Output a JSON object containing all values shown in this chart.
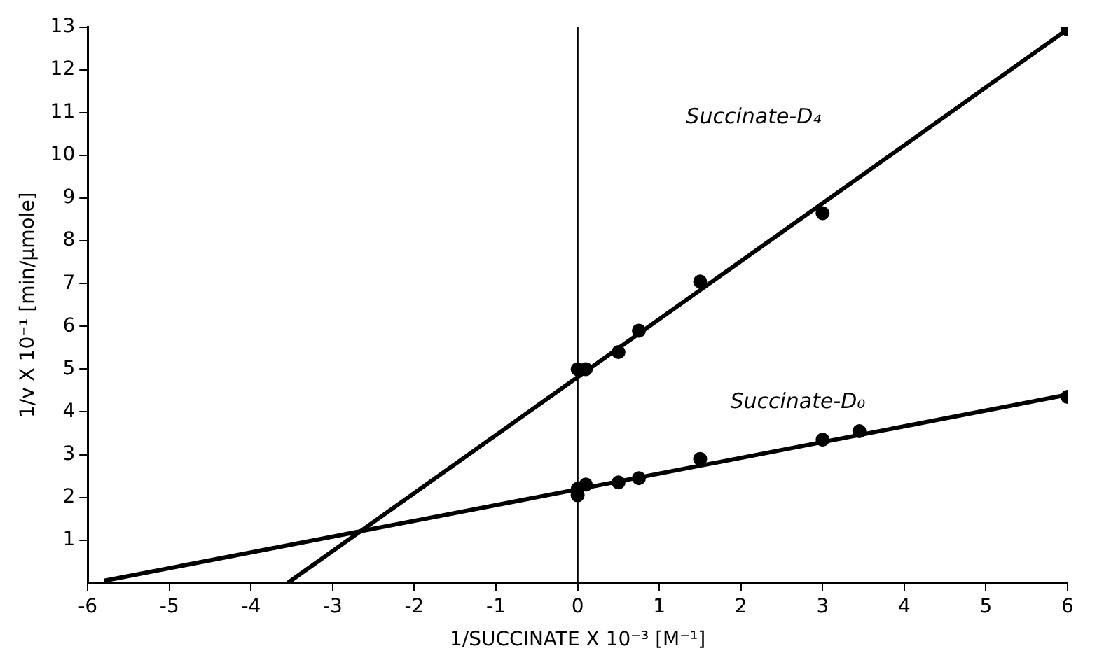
{
  "chart_data": {
    "type": "scatter",
    "xlabel": "1/SUCCINATE X 10⁻³ [M⁻¹]",
    "ylabel": "1/v X 10⁻¹ [min/µmole]",
    "xlim": [
      -6,
      6
    ],
    "xticks": [
      -6,
      -5,
      -4,
      -3,
      -2,
      -1,
      0,
      1,
      2,
      3,
      4,
      5,
      6
    ],
    "ylim": [
      0,
      13
    ],
    "yticks": [
      1,
      2,
      3,
      4,
      5,
      6,
      7,
      8,
      9,
      10,
      11,
      12,
      13
    ],
    "grid": false,
    "legend": false,
    "marker": "circle",
    "ref_lines": [
      {
        "axis": "x",
        "value": 0,
        "color": "#000000"
      }
    ],
    "series": [
      {
        "type": "scatter",
        "color": "#000000",
        "x": [
          0,
          0.1,
          0.5,
          0.75,
          1.5,
          3,
          6
        ],
        "values": [
          5.0,
          5.0,
          5.4,
          5.9,
          7.05,
          8.65,
          12.95
        ]
      },
      {
        "type": "scatter",
        "color": "#000000",
        "x": [
          0,
          0,
          0.1,
          0.5,
          0.75,
          1.5,
          3,
          3.45,
          6
        ],
        "values": [
          2.05,
          2.2,
          2.3,
          2.35,
          2.45,
          2.9,
          3.35,
          3.55,
          4.35
        ]
      },
      {
        "type": "line",
        "name": "Succinate-D₄",
        "color": "#000000",
        "marker": "none",
        "x": [
          -3.55,
          6
        ],
        "values": [
          0,
          12.95
        ]
      },
      {
        "type": "line",
        "name": "Succinate-D₀",
        "color": "#000000",
        "marker": "none",
        "x": [
          -5.8,
          6
        ],
        "values": [
          0.05,
          4.4
        ]
      }
    ]
  }
}
